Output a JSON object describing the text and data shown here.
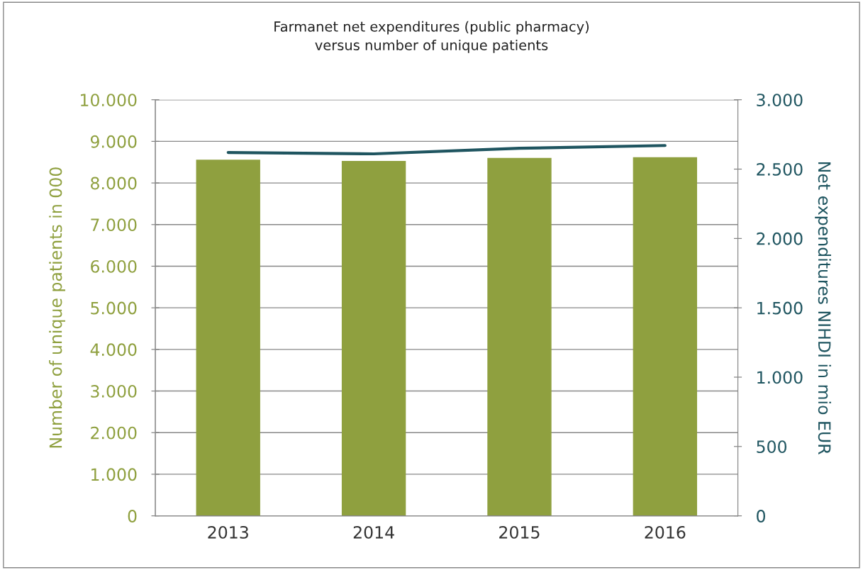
{
  "chart_data": {
    "type": "bar",
    "title": "Farmanet net expenditures (public pharmacy)\nversus number of unique patients",
    "categories": [
      "2013",
      "2014",
      "2015",
      "2016"
    ],
    "series": [
      {
        "color": "#8fa03f",
        "values": [
          8560,
          8530,
          8600,
          8620
        ]
      },
      {
        "type": "line",
        "axis": "y2",
        "color": "#1f5560",
        "values": [
          2620,
          2610,
          2650,
          2670
        ]
      }
    ],
    "ylabel": "Number of unique patients in 000",
    "y2label": "Net expenditures NIHDI in mio EUR",
    "ylim": [
      0,
      10000
    ],
    "yticks": [
      {
        "value": 0,
        "label": "0"
      },
      {
        "value": 1000,
        "label": "1.000"
      },
      {
        "value": 2000,
        "label": "2.000"
      },
      {
        "value": 3000,
        "label": "3.000"
      },
      {
        "value": 4000,
        "label": "4.000"
      },
      {
        "value": 5000,
        "label": "5.000"
      },
      {
        "value": 6000,
        "label": "6.000"
      },
      {
        "value": 7000,
        "label": "7.000"
      },
      {
        "value": 8000,
        "label": "8.000"
      },
      {
        "value": 9000,
        "label": "9.000"
      },
      {
        "value": 10000,
        "label": "10.000"
      }
    ],
    "y2lim": [
      0,
      3000
    ],
    "y2ticks": [
      {
        "value": 0,
        "label": "0"
      },
      {
        "value": 500,
        "label": "500"
      },
      {
        "value": 1000,
        "label": "1.000"
      },
      {
        "value": 1500,
        "label": "1.500"
      },
      {
        "value": 2000,
        "label": "2.000"
      },
      {
        "value": 2500,
        "label": "2.500"
      },
      {
        "value": 3000,
        "label": "3.000"
      }
    ],
    "grid": "y"
  }
}
